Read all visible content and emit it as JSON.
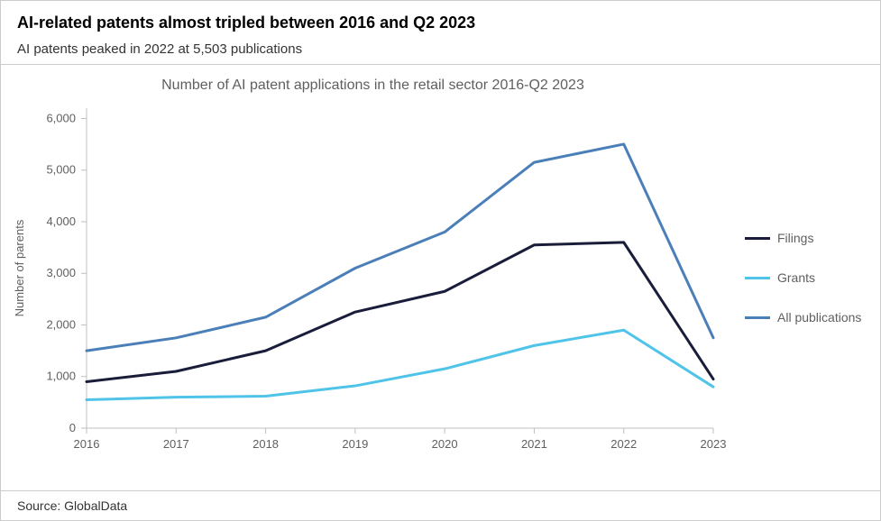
{
  "header": {
    "title": "AI-related patents almost tripled between 2016 and Q2 2023",
    "subtitle": "AI patents peaked in 2022 at 5,503 publications"
  },
  "chart": {
    "type": "line",
    "title": "Number of AI patent applications in the retail sector 2016-Q2 2023",
    "x_label": null,
    "y_label": "Number of parents",
    "x_categories": [
      "2016",
      "2017",
      "2018",
      "2019",
      "2020",
      "2021",
      "2022",
      "2023"
    ],
    "y_ticks": [
      0,
      1000,
      2000,
      3000,
      4000,
      5000,
      6000
    ],
    "y_tick_labels": [
      "0",
      "1,000",
      "2,000",
      "3,000",
      "4,000",
      "5,000",
      "6,000"
    ],
    "ylim": [
      0,
      6200
    ],
    "series": [
      {
        "name": "Filings",
        "color": "#1a1d3a",
        "values": [
          900,
          1100,
          1500,
          2250,
          2650,
          3550,
          3600,
          950
        ]
      },
      {
        "name": "Grants",
        "color": "#4fc4e8",
        "values": [
          550,
          600,
          620,
          820,
          1150,
          1600,
          1900,
          800
        ]
      },
      {
        "name": "All publications",
        "color": "#4a7fb8",
        "values": [
          1500,
          1750,
          2150,
          3100,
          3800,
          5150,
          5503,
          1750
        ]
      }
    ],
    "line_width": 3,
    "background_color": "#ffffff",
    "axis_color": "#bfbfbf",
    "tick_color": "#bfbfbf",
    "text_color": "#5f5f5f",
    "title_fontsize": 16,
    "label_fontsize": 13,
    "tick_fontsize": 13,
    "legend_fontsize": 14
  },
  "footer": {
    "source": "Source: GlobalData"
  }
}
